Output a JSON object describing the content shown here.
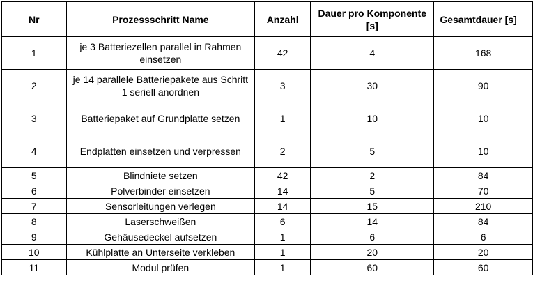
{
  "table": {
    "headers": {
      "nr": "Nr",
      "name": "Prozessschritt Name",
      "anzahl": "Anzahl",
      "dauer": "Dauer pro Komponente [s]",
      "gesamt": "Gesamtdauer [s]"
    },
    "rows": [
      {
        "nr": "1",
        "name": "je 3 Batteriezellen parallel in Rahmen einsetzen",
        "anzahl": "42",
        "dauer": "4",
        "gesamt": "168"
      },
      {
        "nr": "2",
        "name": "je 14 parallele Batteriepakete aus Schritt 1 seriell anordnen",
        "anzahl": "3",
        "dauer": "30",
        "gesamt": "90"
      },
      {
        "nr": "3",
        "name": "Batteriepaket auf Grundplatte setzen",
        "anzahl": "1",
        "dauer": "10",
        "gesamt": "10"
      },
      {
        "nr": "4",
        "name": "Endplatten einsetzen und verpressen",
        "anzahl": "2",
        "dauer": "5",
        "gesamt": "10"
      },
      {
        "nr": "5",
        "name": "Blindniete setzen",
        "anzahl": "42",
        "dauer": "2",
        "gesamt": "84"
      },
      {
        "nr": "6",
        "name": "Polverbinder einsetzen",
        "anzahl": "14",
        "dauer": "5",
        "gesamt": "70"
      },
      {
        "nr": "7",
        "name": "Sensorleitungen verlegen",
        "anzahl": "14",
        "dauer": "15",
        "gesamt": "210"
      },
      {
        "nr": "8",
        "name": "Laserschweißen",
        "anzahl": "6",
        "dauer": "14",
        "gesamt": "84"
      },
      {
        "nr": "9",
        "name": "Gehäusedeckel aufsetzen",
        "anzahl": "1",
        "dauer": "6",
        "gesamt": "6"
      },
      {
        "nr": "10",
        "name": "Kühlplatte an Unterseite verkleben",
        "anzahl": "1",
        "dauer": "20",
        "gesamt": "20"
      },
      {
        "nr": "11",
        "name": "Modul prüfen",
        "anzahl": "1",
        "dauer": "60",
        "gesamt": "60"
      }
    ]
  }
}
